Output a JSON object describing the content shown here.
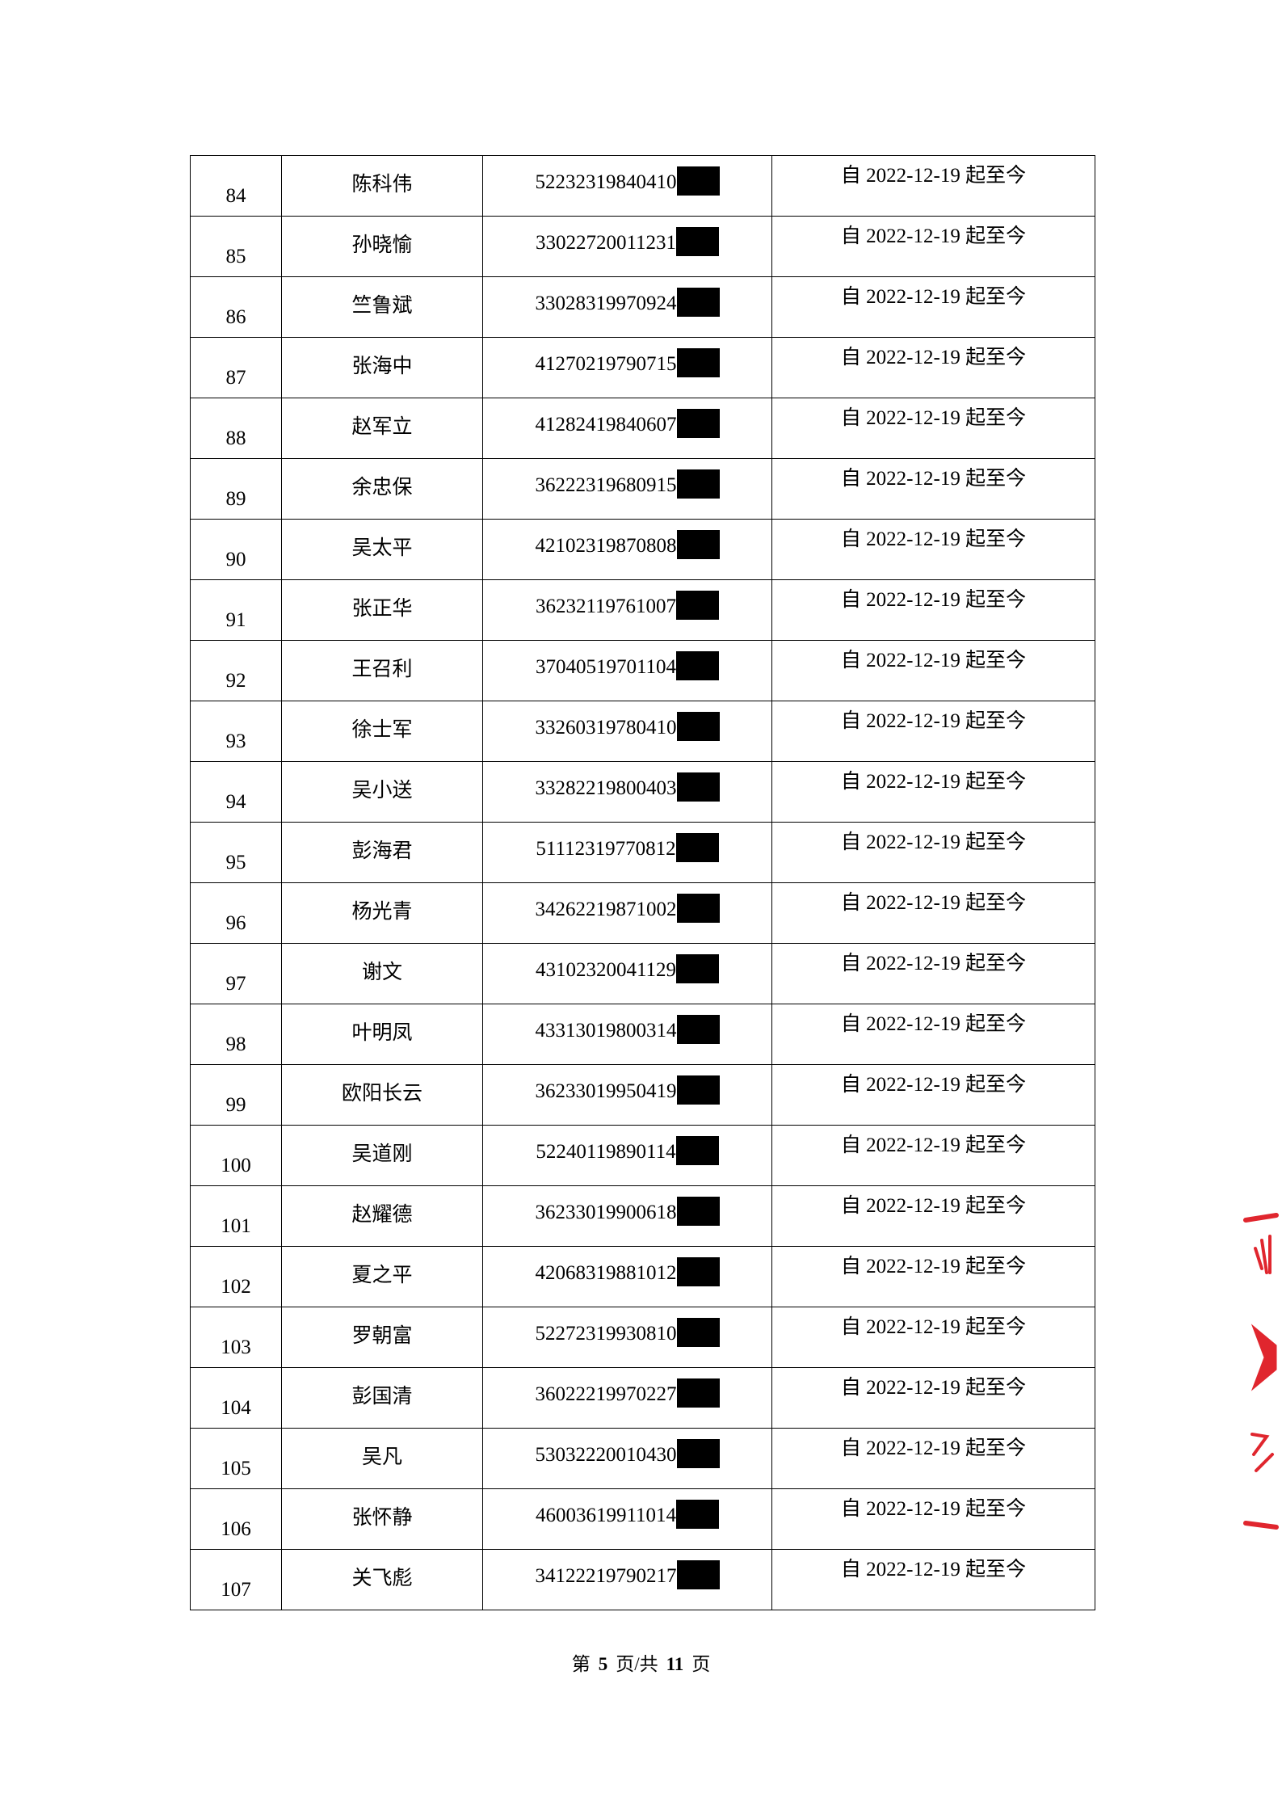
{
  "table": {
    "rows": [
      {
        "no": "84",
        "name": "陈科伟",
        "id": "52232319840410",
        "period": "自 2022-12-19 起至今"
      },
      {
        "no": "85",
        "name": "孙晓愉",
        "id": "33022720011231",
        "period": "自 2022-12-19 起至今"
      },
      {
        "no": "86",
        "name": "竺鲁斌",
        "id": "33028319970924",
        "period": "自 2022-12-19 起至今"
      },
      {
        "no": "87",
        "name": "张海中",
        "id": "41270219790715",
        "period": "自 2022-12-19 起至今"
      },
      {
        "no": "88",
        "name": "赵军立",
        "id": "41282419840607",
        "period": "自 2022-12-19 起至今"
      },
      {
        "no": "89",
        "name": "余忠保",
        "id": "36222319680915",
        "period": "自 2022-12-19 起至今"
      },
      {
        "no": "90",
        "name": "吴太平",
        "id": "42102319870808",
        "period": "自 2022-12-19 起至今"
      },
      {
        "no": "91",
        "name": "张正华",
        "id": "36232119761007",
        "period": "自 2022-12-19 起至今"
      },
      {
        "no": "92",
        "name": "王召利",
        "id": "37040519701104",
        "period": "自 2022-12-19 起至今"
      },
      {
        "no": "93",
        "name": "徐士军",
        "id": "33260319780410",
        "period": "自 2022-12-19 起至今"
      },
      {
        "no": "94",
        "name": "吴小送",
        "id": "33282219800403",
        "period": "自 2022-12-19 起至今"
      },
      {
        "no": "95",
        "name": "彭海君",
        "id": "51112319770812",
        "period": "自 2022-12-19 起至今"
      },
      {
        "no": "96",
        "name": "杨光青",
        "id": "34262219871002",
        "period": "自 2022-12-19 起至今"
      },
      {
        "no": "97",
        "name": "谢文",
        "id": "43102320041129",
        "period": "自 2022-12-19 起至今"
      },
      {
        "no": "98",
        "name": "叶明凤",
        "id": "43313019800314",
        "period": "自 2022-12-19 起至今"
      },
      {
        "no": "99",
        "name": "欧阳长云",
        "id": "36233019950419",
        "period": "自 2022-12-19 起至今"
      },
      {
        "no": "100",
        "name": "吴道刚",
        "id": "52240119890114",
        "period": "自 2022-12-19 起至今"
      },
      {
        "no": "101",
        "name": "赵耀德",
        "id": "36233019900618",
        "period": "自 2022-12-19 起至今"
      },
      {
        "no": "102",
        "name": "夏之平",
        "id": "42068319881012",
        "period": "自 2022-12-19 起至今"
      },
      {
        "no": "103",
        "name": "罗朝富",
        "id": "52272319930810",
        "period": "自 2022-12-19 起至今"
      },
      {
        "no": "104",
        "name": "彭国清",
        "id": "36022219970227",
        "period": "自 2022-12-19 起至今"
      },
      {
        "no": "105",
        "name": "吴凡",
        "id": "53032220010430",
        "period": "自 2022-12-19 起至今"
      },
      {
        "no": "106",
        "name": "张怀静",
        "id": "46003619911014",
        "period": "自 2022-12-19 起至今"
      },
      {
        "no": "107",
        "name": "关飞彪",
        "id": "34122219790217",
        "period": "自 2022-12-19 起至今"
      }
    ]
  },
  "footer": {
    "prefix": "第",
    "page": "5",
    "mid": "页/共",
    "total": "11",
    "suffix": "页"
  },
  "seal": {
    "color": "#e0262e",
    "text": "湖"
  }
}
